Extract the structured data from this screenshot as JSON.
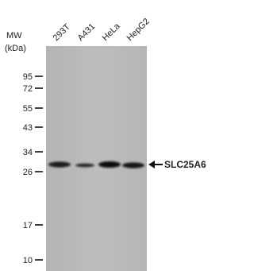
{
  "header": {
    "mw_label": "MW",
    "unit_label": "(kDa)"
  },
  "lanes": [
    "293T",
    "A431",
    "HeLa",
    "HepG2"
  ],
  "markers": [
    "95",
    "72",
    "55",
    "43",
    "34",
    "26",
    "17",
    "10"
  ],
  "band_label": "SLC25A6"
}
